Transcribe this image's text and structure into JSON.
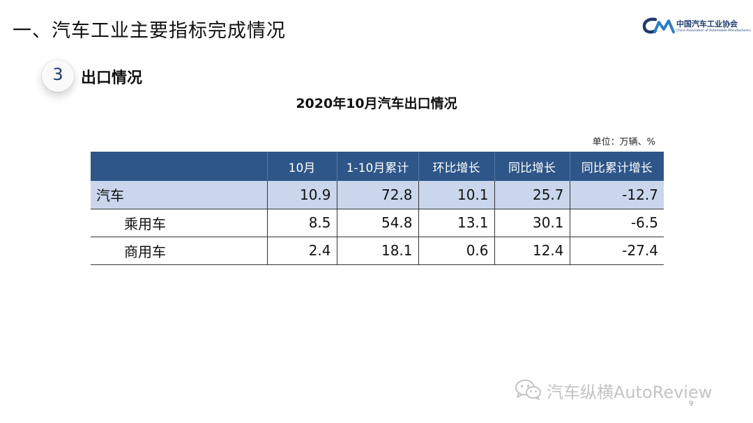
{
  "slide": {
    "title": "一、汽车工业主要指标完成情况"
  },
  "logo": {
    "cn": "中国汽车工业协会",
    "en": "China Association of Automobile Manufacturers"
  },
  "section": {
    "number": "3",
    "title": "出口情况"
  },
  "table": {
    "title": "2020年10月汽车出口情况",
    "unit": "单位：万辆、%",
    "headers": [
      "",
      "10月",
      "1-10月累计",
      "环比增长",
      "同比增长",
      "同比累计增长"
    ],
    "rows": [
      {
        "name": "汽车",
        "values": [
          "10.9",
          "72.8",
          "10.1",
          "25.7",
          "-12.7"
        ]
      },
      {
        "name": "乘用车",
        "values": [
          "8.5",
          "54.8",
          "13.1",
          "30.1",
          "-6.5"
        ]
      },
      {
        "name": "商用车",
        "values": [
          "2.4",
          "18.1",
          "0.6",
          "12.4",
          "-27.4"
        ]
      }
    ]
  },
  "watermark": {
    "text": "汽车纵横AutoReview",
    "icon": "wechat-icon"
  },
  "page_number": "9",
  "colors": {
    "header_bg": "#2e5688",
    "highlight_row": "#c9d6ec",
    "brand": "#1f3b6e"
  }
}
